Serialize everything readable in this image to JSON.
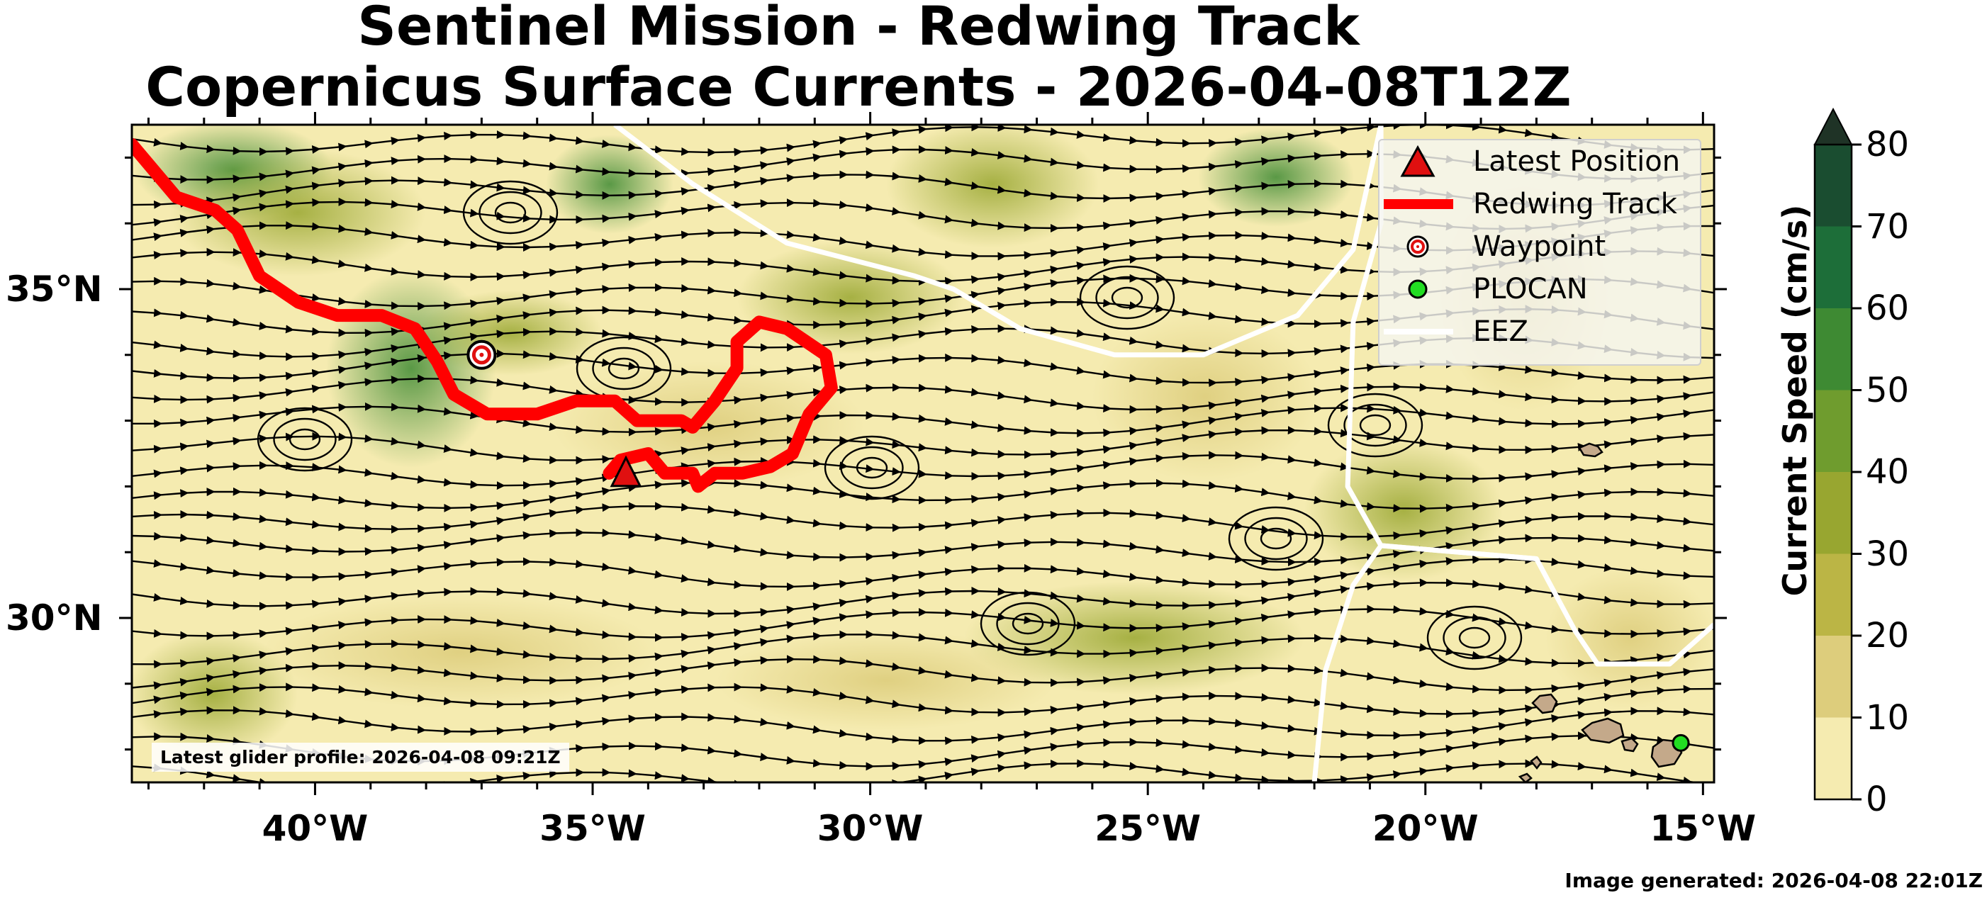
{
  "title": {
    "line1": "Sentinel Mission - Redwing Track",
    "line2": "Copernicus Surface Currents - 2026-04-08T12Z"
  },
  "map": {
    "lon_range": [
      -43.3,
      -14.8
    ],
    "lat_range": [
      27.5,
      37.5
    ],
    "lat_ticks": [
      {
        "value": 35,
        "label": "35°N"
      },
      {
        "value": 30,
        "label": "30°N"
      }
    ],
    "lon_ticks": [
      {
        "value": -40,
        "label": "40°W"
      },
      {
        "value": -35,
        "label": "35°W"
      },
      {
        "value": -30,
        "label": "30°W"
      },
      {
        "value": -25,
        "label": "25°W"
      },
      {
        "value": -20,
        "label": "20°W"
      },
      {
        "value": -15,
        "label": "15°W"
      }
    ],
    "colors": {
      "track": "#ff0000",
      "latest_position": "#e01010",
      "plocan": "#22dd22",
      "eez": "#ffffff",
      "land": "#c4a98a",
      "streamline": "#000000"
    }
  },
  "legend": {
    "items": [
      {
        "label": "Latest Position",
        "symbol": "red-triangle"
      },
      {
        "label": "Redwing Track",
        "symbol": "red-line"
      },
      {
        "label": "Waypoint",
        "symbol": "target-circle"
      },
      {
        "label": "PLOCAN",
        "symbol": "green-circle"
      },
      {
        "label": "EEZ",
        "symbol": "white-line"
      }
    ]
  },
  "colorbar": {
    "label": "Current Speed (cm/s)",
    "ticks": [
      "80",
      "70",
      "60",
      "50",
      "40",
      "30",
      "20",
      "10",
      "0"
    ],
    "colors": [
      "#f5ebb0",
      "#ddcd7c",
      "#bbb545",
      "#98a630",
      "#6f9c2e",
      "#3e8a33",
      "#1d6e39",
      "#1a4d30",
      "#1f3326"
    ]
  },
  "annotations": {
    "profile_note": "Latest glider profile: 2026-04-08 09:21Z",
    "generated_note": "Image generated: 2026-04-08 22:01Z"
  },
  "chart_data": {
    "type": "map",
    "title": "Sentinel Mission - Redwing Track / Copernicus Surface Currents - 2026-04-08T12Z",
    "xlim": [
      -43.3,
      -14.8
    ],
    "ylim": [
      27.5,
      37.5
    ],
    "redwing_track": [
      {
        "lon": -43.3,
        "lat": 37.2
      },
      {
        "lon": -42.5,
        "lat": 36.4
      },
      {
        "lon": -41.8,
        "lat": 36.2
      },
      {
        "lon": -41.4,
        "lat": 35.9
      },
      {
        "lon": -41.0,
        "lat": 35.2
      },
      {
        "lon": -40.3,
        "lat": 34.8
      },
      {
        "lon": -39.6,
        "lat": 34.6
      },
      {
        "lon": -38.8,
        "lat": 34.6
      },
      {
        "lon": -38.2,
        "lat": 34.4
      },
      {
        "lon": -37.8,
        "lat": 33.9
      },
      {
        "lon": -37.5,
        "lat": 33.4
      },
      {
        "lon": -36.9,
        "lat": 33.1
      },
      {
        "lon": -36.0,
        "lat": 33.1
      },
      {
        "lon": -35.3,
        "lat": 33.3
      },
      {
        "lon": -34.6,
        "lat": 33.3
      },
      {
        "lon": -34.2,
        "lat": 33.0
      },
      {
        "lon": -33.4,
        "lat": 33.0
      },
      {
        "lon": -33.2,
        "lat": 32.9
      },
      {
        "lon": -32.8,
        "lat": 33.3
      },
      {
        "lon": -32.4,
        "lat": 33.8
      },
      {
        "lon": -32.4,
        "lat": 34.2
      },
      {
        "lon": -32.0,
        "lat": 34.5
      },
      {
        "lon": -31.5,
        "lat": 34.4
      },
      {
        "lon": -30.8,
        "lat": 34.0
      },
      {
        "lon": -30.7,
        "lat": 33.5
      },
      {
        "lon": -31.1,
        "lat": 33.1
      },
      {
        "lon": -31.4,
        "lat": 32.5
      },
      {
        "lon": -31.8,
        "lat": 32.3
      },
      {
        "lon": -32.3,
        "lat": 32.2
      },
      {
        "lon": -32.8,
        "lat": 32.2
      },
      {
        "lon": -33.1,
        "lat": 32.0
      },
      {
        "lon": -33.2,
        "lat": 32.2
      },
      {
        "lon": -33.7,
        "lat": 32.2
      },
      {
        "lon": -34.0,
        "lat": 32.5
      },
      {
        "lon": -34.5,
        "lat": 32.4
      },
      {
        "lon": -34.7,
        "lat": 32.2
      }
    ],
    "latest_position": {
      "lon": -34.4,
      "lat": 32.2
    },
    "waypoint": {
      "lon": -37.0,
      "lat": 34.0
    },
    "plocan": {
      "lon": -15.4,
      "lat": 28.1
    },
    "eez_boundaries": [
      [
        {
          "lon": -34.6,
          "lat": 37.5
        },
        {
          "lon": -33.2,
          "lat": 36.6
        },
        {
          "lon": -31.5,
          "lat": 35.7
        },
        {
          "lon": -29.2,
          "lat": 35.2
        },
        {
          "lon": -28.5,
          "lat": 35.0
        },
        {
          "lon": -27.3,
          "lat": 34.4
        },
        {
          "lon": -25.6,
          "lat": 34.0
        },
        {
          "lon": -24.0,
          "lat": 34.0
        },
        {
          "lon": -22.3,
          "lat": 34.6
        },
        {
          "lon": -21.3,
          "lat": 35.6
        },
        {
          "lon": -20.8,
          "lat": 37.5
        }
      ],
      [
        {
          "lon": -20.8,
          "lat": 37.5
        },
        {
          "lon": -20.8,
          "lat": 36.0
        },
        {
          "lon": -21.3,
          "lat": 34.5
        },
        {
          "lon": -21.4,
          "lat": 32.0
        },
        {
          "lon": -20.8,
          "lat": 31.1
        },
        {
          "lon": -21.3,
          "lat": 30.5
        },
        {
          "lon": -21.8,
          "lat": 29.2
        },
        {
          "lon": -22.0,
          "lat": 27.5
        }
      ],
      [
        {
          "lon": -20.8,
          "lat": 31.1
        },
        {
          "lon": -18.0,
          "lat": 30.9
        },
        {
          "lon": -17.3,
          "lat": 29.8
        },
        {
          "lon": -16.9,
          "lat": 29.3
        },
        {
          "lon": -15.6,
          "lat": 29.3
        },
        {
          "lon": -14.8,
          "lat": 29.9
        }
      ],
      [
        {
          "lon": -18.0,
          "lat": 30.9
        },
        {
          "lon": -20.8,
          "lat": 31.1
        }
      ]
    ]
  }
}
